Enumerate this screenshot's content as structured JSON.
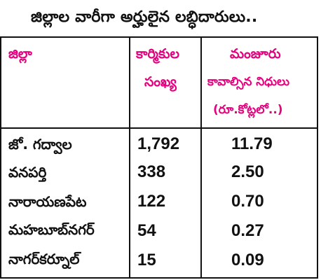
{
  "title": "జిల్లాల వారీగా అర్హులైన లబ్ధిదారులు..",
  "colors": {
    "header_text": "#e6007e",
    "body_text": "#111111",
    "border": "#111111"
  },
  "table": {
    "headers": {
      "district": "జిల్లా",
      "workers_line1": "కార్మికుల",
      "workers_line2": "సంఖ్య",
      "funds_line1": "మంజూరు",
      "funds_line2": "కావాల్సిన నిధులు",
      "funds_line3": "(రూ.కోట్లలో..)"
    },
    "rows": [
      {
        "district": "జో. గద్వాల",
        "workers": "1,792",
        "funds": "11.79"
      },
      {
        "district": "వనపర్తి",
        "workers": "338",
        "funds": "2.50"
      },
      {
        "district": "నారాయణపేట",
        "workers": "122",
        "funds": "0.70"
      },
      {
        "district": "మహబూబ్‌నగర్",
        "workers": "54",
        "funds": "0.27"
      },
      {
        "district": "నాగర్‌కర్నూల్",
        "workers": "15",
        "funds": "0.09"
      }
    ]
  }
}
